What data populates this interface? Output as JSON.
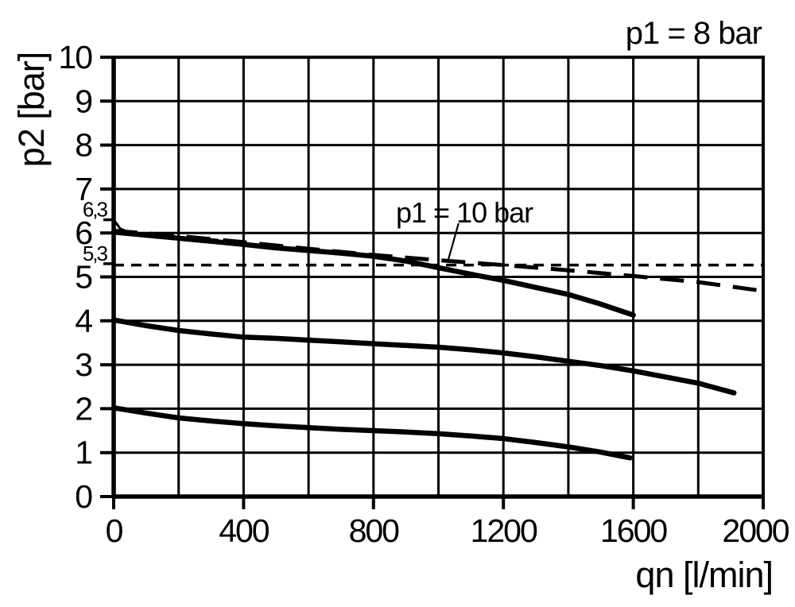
{
  "annotations": {
    "p1_8_label": "p1 = 8 bar",
    "p1_10_label": "p1 = 10 bar"
  },
  "colors": {
    "line": "#000000",
    "background": "#ffffff"
  },
  "chart_data": {
    "type": "line",
    "title": "",
    "xlabel": "qn [l/min]",
    "ylabel": "p2 [bar]",
    "xlim": [
      0,
      2000
    ],
    "ylim": [
      0,
      10
    ],
    "grid": true,
    "x_grid_step": 200,
    "y_grid_step": 1,
    "x_ticks": [
      {
        "value": 0,
        "label": "0"
      },
      {
        "value": 400,
        "label": "400"
      },
      {
        "value": 800,
        "label": "800"
      },
      {
        "value": 1200,
        "label": "1200"
      },
      {
        "value": 1600,
        "label": "1600"
      },
      {
        "value": 2000,
        "label": "2000"
      }
    ],
    "y_ticks": [
      {
        "value": 0,
        "label": "0"
      },
      {
        "value": 1,
        "label": "1"
      },
      {
        "value": 2,
        "label": "2"
      },
      {
        "value": 3,
        "label": "3"
      },
      {
        "value": 4,
        "label": "4"
      },
      {
        "value": 5,
        "label": "5"
      },
      {
        "value": 6,
        "label": "6"
      },
      {
        "value": 7,
        "label": "7"
      },
      {
        "value": 8,
        "label": "8"
      },
      {
        "value": 9,
        "label": "9"
      },
      {
        "value": 10,
        "label": "10"
      }
    ],
    "y_special_ticks": [
      {
        "value": 6.3,
        "label": "6,3"
      },
      {
        "value": 5.3,
        "label": "5,3"
      }
    ],
    "series": [
      {
        "name": "setting-6.3-initial-drop",
        "style": "solid",
        "width": 3,
        "points": [
          [
            0,
            6.3
          ],
          [
            8,
            6.22
          ],
          [
            20,
            6.1
          ],
          [
            45,
            6.02
          ],
          [
            90,
            5.97
          ],
          [
            160,
            5.93
          ],
          [
            240,
            5.88
          ],
          [
            320,
            5.84
          ]
        ]
      },
      {
        "name": "p1-8bar-setting-6-curve",
        "style": "solid",
        "width": 6.5,
        "points": [
          [
            0,
            6.02
          ],
          [
            100,
            5.95
          ],
          [
            200,
            5.88
          ],
          [
            300,
            5.81
          ],
          [
            400,
            5.74
          ],
          [
            500,
            5.66
          ],
          [
            600,
            5.6
          ],
          [
            700,
            5.54
          ],
          [
            800,
            5.47
          ],
          [
            900,
            5.36
          ],
          [
            1000,
            5.21
          ],
          [
            1100,
            5.06
          ],
          [
            1200,
            4.92
          ],
          [
            1300,
            4.76
          ],
          [
            1400,
            4.6
          ],
          [
            1500,
            4.38
          ],
          [
            1600,
            4.13
          ]
        ]
      },
      {
        "name": "p1-10bar-dashed-curve",
        "style": "long-dash",
        "width": 5,
        "points": [
          [
            0,
            6.05
          ],
          [
            200,
            5.93
          ],
          [
            400,
            5.79
          ],
          [
            600,
            5.64
          ],
          [
            800,
            5.5
          ],
          [
            1000,
            5.38
          ],
          [
            1200,
            5.27
          ],
          [
            1400,
            5.15
          ],
          [
            1600,
            5.02
          ],
          [
            1800,
            4.88
          ],
          [
            1980,
            4.7
          ]
        ]
      },
      {
        "name": "reference-5.3-dashed-line",
        "style": "short-dash",
        "width": 3.5,
        "points": [
          [
            0,
            5.27
          ],
          [
            2000,
            5.27
          ]
        ]
      },
      {
        "name": "p1-8bar-setting-4-curve",
        "style": "solid",
        "width": 6.5,
        "points": [
          [
            0,
            4.02
          ],
          [
            100,
            3.89
          ],
          [
            200,
            3.78
          ],
          [
            300,
            3.7
          ],
          [
            400,
            3.63
          ],
          [
            500,
            3.6
          ],
          [
            600,
            3.56
          ],
          [
            700,
            3.52
          ],
          [
            800,
            3.48
          ],
          [
            900,
            3.44
          ],
          [
            1000,
            3.4
          ],
          [
            1100,
            3.34
          ],
          [
            1200,
            3.27
          ],
          [
            1300,
            3.18
          ],
          [
            1400,
            3.08
          ],
          [
            1500,
            2.98
          ],
          [
            1600,
            2.86
          ],
          [
            1700,
            2.72
          ],
          [
            1800,
            2.58
          ],
          [
            1910,
            2.36
          ]
        ]
      },
      {
        "name": "p1-8bar-setting-2-curve",
        "style": "solid",
        "width": 6.5,
        "points": [
          [
            0,
            2.02
          ],
          [
            100,
            1.9
          ],
          [
            200,
            1.79
          ],
          [
            300,
            1.72
          ],
          [
            400,
            1.66
          ],
          [
            500,
            1.61
          ],
          [
            600,
            1.57
          ],
          [
            700,
            1.53
          ],
          [
            800,
            1.5
          ],
          [
            900,
            1.47
          ],
          [
            1000,
            1.43
          ],
          [
            1100,
            1.38
          ],
          [
            1200,
            1.32
          ],
          [
            1300,
            1.23
          ],
          [
            1400,
            1.13
          ],
          [
            1500,
            1.01
          ],
          [
            1590,
            0.88
          ]
        ]
      }
    ],
    "leader_line": {
      "annotation": "p1 = 10 bar",
      "from": [
        1062,
        6.22
      ],
      "to": [
        1028,
        5.33
      ]
    },
    "legend_position": "none"
  }
}
